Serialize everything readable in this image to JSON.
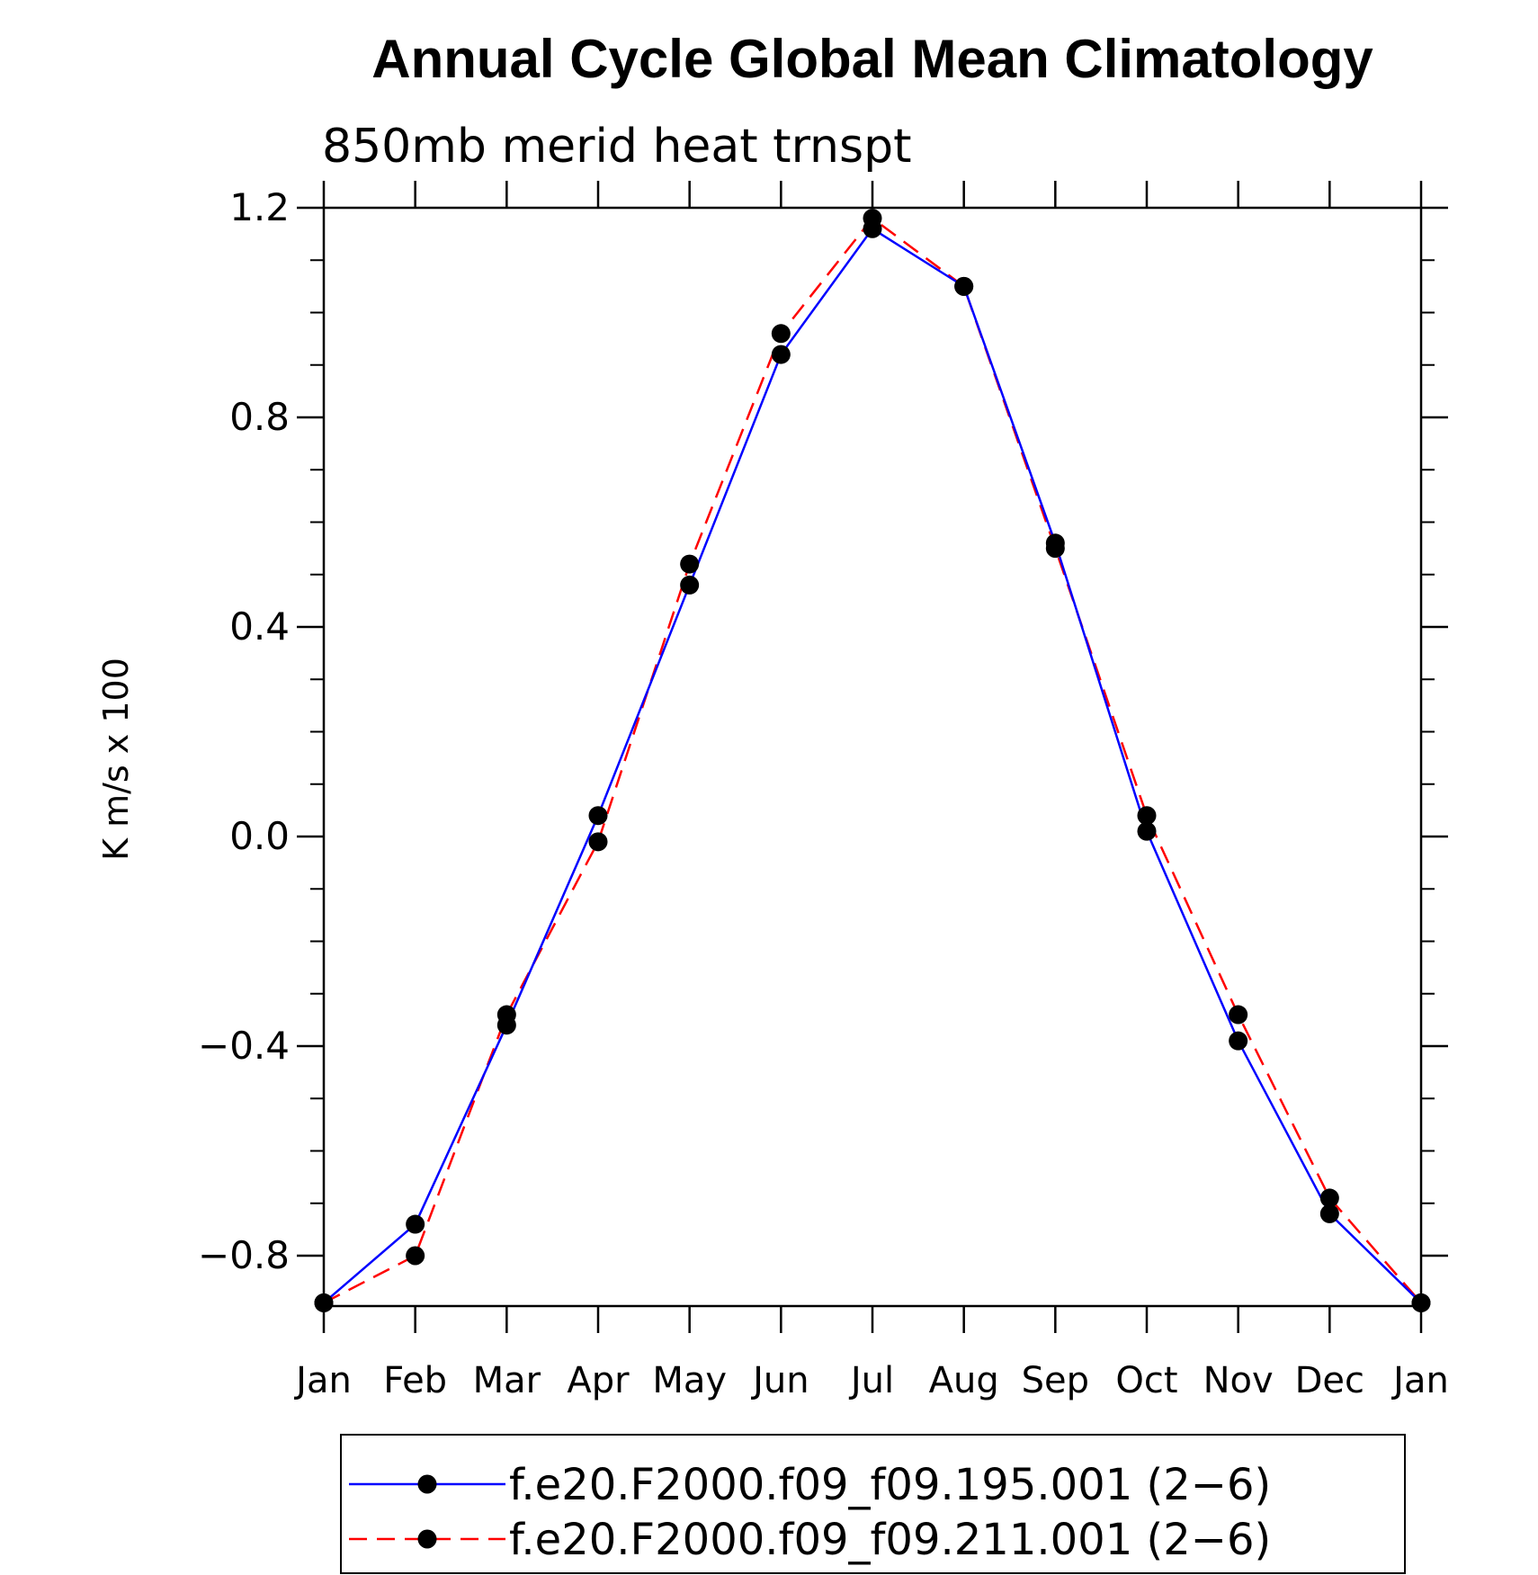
{
  "chart_data": {
    "type": "line",
    "title": "Annual Cycle Global Mean Climatology",
    "subtitle": "850mb merid heat trnspt",
    "xlabel": "",
    "ylabel": "K m/s x 100",
    "categories": [
      "Jan",
      "Feb",
      "Mar",
      "Apr",
      "May",
      "Jun",
      "Jul",
      "Aug",
      "Sep",
      "Oct",
      "Nov",
      "Dec",
      "Jan"
    ],
    "ylim": [
      -0.9,
      1.2
    ],
    "y_ticks": [
      1.2,
      0.8,
      0.4,
      0.0,
      -0.4,
      -0.8
    ],
    "y_tick_labels": [
      "1.2",
      "0.8",
      "0.4",
      "0.0",
      "−0.4",
      "−0.8"
    ],
    "grid": false,
    "legend_position": "bottom",
    "series": [
      {
        "name": "f.e20.F2000.f09_f09.195.001 (2−6)",
        "color": "#0000ff",
        "line_style": "solid",
        "marker": "filled-circle",
        "values": [
          -0.89,
          -0.74,
          -0.36,
          0.04,
          0.48,
          0.92,
          1.16,
          1.05,
          0.56,
          0.01,
          -0.39,
          -0.72,
          -0.89
        ]
      },
      {
        "name": "f.e20.F2000.f09_f09.211.001 (2−6)",
        "color": "#ff0000",
        "line_style": "dashed",
        "marker": "filled-circle",
        "values": [
          -0.89,
          -0.8,
          -0.34,
          -0.01,
          0.52,
          0.96,
          1.18,
          1.05,
          0.55,
          0.04,
          -0.34,
          -0.69,
          -0.89
        ]
      }
    ]
  }
}
